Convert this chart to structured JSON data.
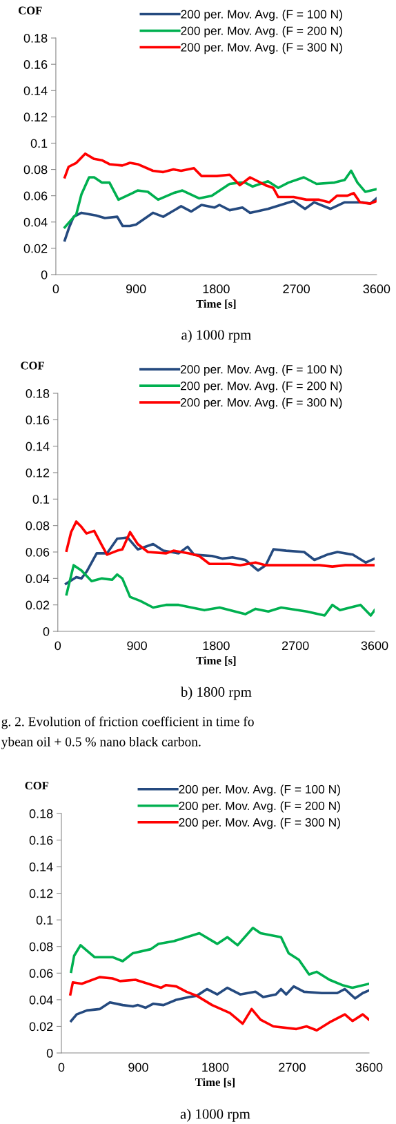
{
  "chart_data": [
    {
      "type": "line",
      "subtitle": "a) 1000 rpm",
      "xlabel": "Time [s]",
      "ylabel": "COF",
      "xlim": [
        0,
        3600
      ],
      "ylim": [
        0,
        0.18
      ],
      "xticks": [
        0,
        900,
        1800,
        2700,
        3600
      ],
      "yticks": [
        0,
        0.02,
        0.04,
        0.06,
        0.08,
        0.1,
        0.12,
        0.14,
        0.16,
        0.18
      ],
      "grid": false,
      "legend": "top",
      "series": [
        {
          "name": "200 per. Mov. Avg. (F = 100 N)",
          "color": "#254a7f",
          "x": [
            100,
            150,
            200,
            287,
            450,
            550,
            689,
            750,
            830,
            900,
            1090,
            1205,
            1406,
            1520,
            1635,
            1779,
            1836,
            1951,
            2094,
            2180,
            2381,
            2525,
            2668,
            2797,
            2898,
            3084,
            3242,
            3443,
            3529,
            3600
          ],
          "values": [
            0.026,
            0.036,
            0.044,
            0.047,
            0.045,
            0.043,
            0.044,
            0.037,
            0.037,
            0.038,
            0.047,
            0.044,
            0.052,
            0.048,
            0.053,
            0.051,
            0.053,
            0.049,
            0.051,
            0.047,
            0.05,
            0.053,
            0.056,
            0.05,
            0.055,
            0.05,
            0.055,
            0.055,
            0.054,
            0.058
          ]
        },
        {
          "name": "200 per. Mov. Avg. (F = 200 N)",
          "color": "#00b050",
          "x": [
            100,
            230,
            287,
            373,
            430,
            516,
            602,
            703,
            860,
            918,
            1033,
            1148,
            1320,
            1420,
            1607,
            1750,
            1951,
            2066,
            2123,
            2209,
            2381,
            2496,
            2611,
            2783,
            2926,
            3127,
            3242,
            3314,
            3385,
            3472,
            3600
          ],
          "values": [
            0.036,
            0.046,
            0.061,
            0.074,
            0.074,
            0.07,
            0.07,
            0.057,
            0.062,
            0.064,
            0.063,
            0.057,
            0.062,
            0.064,
            0.058,
            0.06,
            0.069,
            0.07,
            0.07,
            0.067,
            0.071,
            0.066,
            0.07,
            0.074,
            0.069,
            0.07,
            0.072,
            0.079,
            0.07,
            0.063,
            0.065
          ]
        },
        {
          "name": "200 per. Mov. Avg. (F = 300 N)",
          "color": "#ff0000",
          "x": [
            100,
            143,
            230,
            330,
            430,
            516,
            602,
            746,
            832,
            918,
            1090,
            1205,
            1320,
            1406,
            1549,
            1635,
            1807,
            1951,
            2066,
            2180,
            2353,
            2439,
            2496,
            2668,
            2812,
            2955,
            3070,
            3156,
            3271,
            3343,
            3414,
            3529,
            3600
          ],
          "values": [
            0.074,
            0.082,
            0.085,
            0.092,
            0.088,
            0.087,
            0.084,
            0.083,
            0.085,
            0.084,
            0.079,
            0.078,
            0.08,
            0.079,
            0.081,
            0.075,
            0.075,
            0.076,
            0.068,
            0.074,
            0.068,
            0.066,
            0.059,
            0.059,
            0.057,
            0.057,
            0.055,
            0.06,
            0.06,
            0.062,
            0.055,
            0.054,
            0.056
          ]
        }
      ]
    },
    {
      "type": "line",
      "subtitle": "b) 1800 rpm",
      "xlabel": "Time [s]",
      "ylabel": "COF",
      "xlim": [
        0,
        3600
      ],
      "ylim": [
        0,
        0.18
      ],
      "xticks": [
        0,
        900,
        1800,
        2700,
        3600
      ],
      "yticks": [
        0,
        0.02,
        0.04,
        0.06,
        0.08,
        0.1,
        0.12,
        0.14,
        0.16,
        0.18
      ],
      "grid": false,
      "legend": "top",
      "annotations": [
        "g. 2. Evolution of friction coefficient in time fo",
        "ybean oil + 0.5 % nano black carbon."
      ],
      "series": [
        {
          "name": "200 per. Mov. Avg. (F = 100 N)",
          "color": "#254a7f",
          "x": [
            93,
            210,
            268,
            326,
            442,
            559,
            675,
            792,
            908,
            1083,
            1199,
            1374,
            1475,
            1548,
            1752,
            1868,
            1985,
            2130,
            2276,
            2363,
            2450,
            2596,
            2799,
            2916,
            3061,
            3178,
            3352,
            3498,
            3600
          ],
          "values": [
            0.036,
            0.041,
            0.04,
            0.045,
            0.059,
            0.059,
            0.07,
            0.071,
            0.062,
            0.066,
            0.061,
            0.059,
            0.064,
            0.058,
            0.057,
            0.055,
            0.056,
            0.054,
            0.046,
            0.05,
            0.062,
            0.061,
            0.06,
            0.054,
            0.058,
            0.06,
            0.058,
            0.052,
            0.055
          ]
        },
        {
          "name": "200 per. Mov. Avg. (F = 200 N)",
          "color": "#00b050",
          "x": [
            99,
            180,
            268,
            384,
            501,
            617,
            675,
            733,
            821,
            937,
            1083,
            1228,
            1374,
            1665,
            1839,
            2130,
            2247,
            2392,
            2538,
            2829,
            3032,
            3120,
            3207,
            3440,
            3556,
            3600
          ],
          "values": [
            0.028,
            0.05,
            0.046,
            0.038,
            0.04,
            0.039,
            0.043,
            0.04,
            0.026,
            0.023,
            0.018,
            0.02,
            0.02,
            0.016,
            0.018,
            0.013,
            0.017,
            0.015,
            0.018,
            0.015,
            0.012,
            0.02,
            0.016,
            0.02,
            0.012,
            0.016
          ]
        },
        {
          "name": "200 per. Mov. Avg. (F = 300 N)",
          "color": "#ff0000",
          "x": [
            99,
            151,
            210,
            268,
            326,
            413,
            501,
            559,
            675,
            733,
            821,
            908,
            1024,
            1228,
            1315,
            1490,
            1606,
            1723,
            1956,
            2072,
            2247,
            2363,
            2538,
            2974,
            3120,
            3265,
            3600
          ],
          "values": [
            0.061,
            0.075,
            0.083,
            0.079,
            0.074,
            0.076,
            0.065,
            0.058,
            0.061,
            0.062,
            0.075,
            0.066,
            0.06,
            0.059,
            0.061,
            0.059,
            0.057,
            0.051,
            0.051,
            0.05,
            0.052,
            0.05,
            0.05,
            0.05,
            0.049,
            0.05,
            0.05
          ]
        }
      ]
    },
    {
      "type": "line",
      "subtitle": "a) 1000 rpm",
      "xlabel": "Time [s]",
      "ylabel": "COF",
      "xlim": [
        0,
        3600
      ],
      "ylim": [
        0,
        0.18
      ],
      "xticks": [
        0,
        900,
        1800,
        2700,
        3600
      ],
      "yticks": [
        0,
        0.02,
        0.04,
        0.06,
        0.08,
        0.1,
        0.12,
        0.14,
        0.16,
        0.18
      ],
      "grid": false,
      "legend": "top",
      "series": [
        {
          "name": "200 per. Mov. Avg. (F = 100 N)",
          "color": "#254a7f",
          "x": [
            114,
            179,
            299,
            448,
            568,
            717,
            837,
            896,
            986,
            1076,
            1195,
            1345,
            1494,
            1584,
            1703,
            1823,
            1942,
            2092,
            2271,
            2361,
            2510,
            2570,
            2630,
            2719,
            2839,
            3048,
            3227,
            3317,
            3436,
            3526,
            3600
          ],
          "values": [
            0.024,
            0.029,
            0.032,
            0.033,
            0.038,
            0.036,
            0.035,
            0.036,
            0.034,
            0.037,
            0.036,
            0.04,
            0.042,
            0.043,
            0.048,
            0.044,
            0.049,
            0.044,
            0.046,
            0.042,
            0.044,
            0.048,
            0.044,
            0.05,
            0.046,
            0.045,
            0.045,
            0.048,
            0.041,
            0.045,
            0.047
          ]
        },
        {
          "name": "200 per. Mov. Avg. (F = 200 N)",
          "color": "#00b050",
          "x": [
            114,
            149,
            224,
            314,
            388,
            598,
            717,
            837,
            1046,
            1135,
            1315,
            1614,
            1823,
            1942,
            2062,
            2241,
            2331,
            2570,
            2659,
            2779,
            2898,
            2988,
            3137,
            3287,
            3406,
            3600
          ],
          "values": [
            0.061,
            0.073,
            0.081,
            0.076,
            0.072,
            0.072,
            0.069,
            0.075,
            0.078,
            0.082,
            0.084,
            0.09,
            0.082,
            0.087,
            0.081,
            0.094,
            0.09,
            0.087,
            0.075,
            0.07,
            0.059,
            0.061,
            0.055,
            0.051,
            0.049,
            0.052
          ]
        },
        {
          "name": "200 per. Mov. Avg. (F = 300 N)",
          "color": "#ff0000",
          "x": [
            105,
            134,
            239,
            448,
            598,
            687,
            867,
            1016,
            1165,
            1225,
            1345,
            1464,
            1584,
            1763,
            1972,
            2121,
            2226,
            2331,
            2480,
            2749,
            2868,
            2988,
            3137,
            3317,
            3406,
            3526,
            3600
          ],
          "values": [
            0.044,
            0.053,
            0.052,
            0.057,
            0.056,
            0.054,
            0.055,
            0.052,
            0.049,
            0.051,
            0.05,
            0.046,
            0.043,
            0.036,
            0.03,
            0.022,
            0.033,
            0.025,
            0.02,
            0.018,
            0.02,
            0.017,
            0.023,
            0.029,
            0.024,
            0.029,
            0.025
          ]
        }
      ]
    }
  ]
}
